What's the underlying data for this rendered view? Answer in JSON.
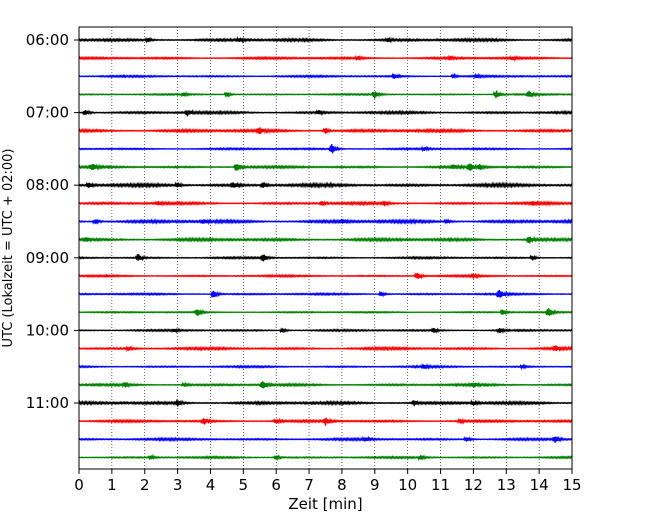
{
  "chart_data": {
    "type": "line",
    "title": "",
    "xlabel": "Zeit  [min]",
    "ylabel": "UTC (Lokalzeit = UTC + 02:00)",
    "xlim": [
      0,
      15
    ],
    "x_ticks": [
      0,
      1,
      2,
      3,
      4,
      5,
      6,
      7,
      8,
      9,
      10,
      11,
      12,
      13,
      14,
      15
    ],
    "y_tick_labels": [
      "06:00",
      "07:00",
      "08:00",
      "09:00",
      "10:00",
      "11:00"
    ],
    "y_tick_rows": [
      0,
      4,
      8,
      12,
      16,
      20
    ],
    "grid": "vertical-dotted",
    "row_interval_min": 15,
    "series_colors": [
      "#000000",
      "#ff0000",
      "#0000ff",
      "#008000"
    ],
    "rows": [
      {
        "start": "06:00",
        "color": "#000000",
        "amplitude": 0.65,
        "events": [
          {
            "t": 2.1,
            "a": 1.2
          },
          {
            "t": 4.9,
            "a": 1.0
          },
          {
            "t": 9.4,
            "a": 0.9
          }
        ]
      },
      {
        "start": "06:15",
        "color": "#ff0000",
        "amplitude": 0.55,
        "events": [
          {
            "t": 8.5,
            "a": 1.0
          },
          {
            "t": 11.3,
            "a": 1.0
          },
          {
            "t": 13.2,
            "a": 0.9
          }
        ]
      },
      {
        "start": "06:30",
        "color": "#0000ff",
        "amplitude": 0.45,
        "events": [
          {
            "t": 9.6,
            "a": 1.6
          },
          {
            "t": 11.4,
            "a": 1.0
          },
          {
            "t": 12.1,
            "a": 0.8
          }
        ]
      },
      {
        "start": "06:45",
        "color": "#008000",
        "amplitude": 0.35,
        "events": [
          {
            "t": 3.2,
            "a": 1.0
          },
          {
            "t": 4.5,
            "a": 1.5
          },
          {
            "t": 9.0,
            "a": 2.5
          },
          {
            "t": 12.7,
            "a": 2.6
          },
          {
            "t": 13.7,
            "a": 2.0
          }
        ]
      },
      {
        "start": "07:00",
        "color": "#000000",
        "amplitude": 0.6,
        "events": [
          {
            "t": 0.2,
            "a": 1.8
          },
          {
            "t": 3.3,
            "a": 2.0
          },
          {
            "t": 7.3,
            "a": 1.2
          }
        ]
      },
      {
        "start": "07:15",
        "color": "#ff0000",
        "amplitude": 0.7,
        "events": [
          {
            "t": 5.5,
            "a": 1.8
          },
          {
            "t": 7.5,
            "a": 2.0
          }
        ]
      },
      {
        "start": "07:30",
        "color": "#0000ff",
        "amplitude": 0.45,
        "events": [
          {
            "t": 7.7,
            "a": 3.0
          },
          {
            "t": 10.5,
            "a": 1.0
          }
        ]
      },
      {
        "start": "07:45",
        "color": "#008000",
        "amplitude": 0.55,
        "events": [
          {
            "t": 0.4,
            "a": 2.0
          },
          {
            "t": 4.8,
            "a": 3.0
          },
          {
            "t": 11.4,
            "a": 1.2
          },
          {
            "t": 11.9,
            "a": 2.6
          },
          {
            "t": 12.2,
            "a": 1.8
          }
        ]
      },
      {
        "start": "08:00",
        "color": "#000000",
        "amplitude": 0.75,
        "events": [
          {
            "t": 0.3,
            "a": 1.6
          },
          {
            "t": 3.0,
            "a": 1.6
          },
          {
            "t": 4.7,
            "a": 1.8
          },
          {
            "t": 5.6,
            "a": 2.0
          }
        ]
      },
      {
        "start": "08:15",
        "color": "#ff0000",
        "amplitude": 0.6,
        "events": [
          {
            "t": 2.4,
            "a": 1.2
          },
          {
            "t": 7.4,
            "a": 1.3
          },
          {
            "t": 9.3,
            "a": 1.4
          },
          {
            "t": 13.8,
            "a": 1.2
          }
        ]
      },
      {
        "start": "08:30",
        "color": "#0000ff",
        "amplitude": 0.75,
        "events": [
          {
            "t": 0.5,
            "a": 1.5
          },
          {
            "t": 3.8,
            "a": 1.4
          },
          {
            "t": 8.0,
            "a": 1.3
          },
          {
            "t": 11.2,
            "a": 1.2
          }
        ]
      },
      {
        "start": "08:45",
        "color": "#008000",
        "amplitude": 0.7,
        "events": [
          {
            "t": 0.2,
            "a": 1.4
          },
          {
            "t": 13.7,
            "a": 2.2
          }
        ]
      },
      {
        "start": "09:00",
        "color": "#000000",
        "amplitude": 0.45,
        "events": [
          {
            "t": 1.8,
            "a": 2.6
          },
          {
            "t": 5.6,
            "a": 2.4
          },
          {
            "t": 13.8,
            "a": 1.6
          }
        ]
      },
      {
        "start": "09:15",
        "color": "#ff0000",
        "amplitude": 0.45,
        "events": [
          {
            "t": 10.3,
            "a": 2.6
          },
          {
            "t": 12.0,
            "a": 1.2
          }
        ]
      },
      {
        "start": "09:30",
        "color": "#0000ff",
        "amplitude": 0.45,
        "events": [
          {
            "t": 4.1,
            "a": 2.8
          },
          {
            "t": 9.2,
            "a": 1.4
          },
          {
            "t": 12.8,
            "a": 3.2
          }
        ]
      },
      {
        "start": "09:45",
        "color": "#008000",
        "amplitude": 0.35,
        "events": [
          {
            "t": 3.6,
            "a": 2.8
          },
          {
            "t": 12.9,
            "a": 2.0
          },
          {
            "t": 14.3,
            "a": 3.2
          }
        ]
      },
      {
        "start": "10:00",
        "color": "#000000",
        "amplitude": 0.45,
        "events": [
          {
            "t": 2.9,
            "a": 1.0
          },
          {
            "t": 6.2,
            "a": 1.4
          },
          {
            "t": 10.8,
            "a": 1.6
          },
          {
            "t": 12.8,
            "a": 1.6
          }
        ]
      },
      {
        "start": "10:15",
        "color": "#ff0000",
        "amplitude": 0.6,
        "events": [
          {
            "t": 1.5,
            "a": 1.2
          },
          {
            "t": 14.5,
            "a": 1.6
          }
        ]
      },
      {
        "start": "10:30",
        "color": "#0000ff",
        "amplitude": 0.45,
        "events": [
          {
            "t": 10.5,
            "a": 1.2
          },
          {
            "t": 13.5,
            "a": 1.2
          }
        ]
      },
      {
        "start": "10:45",
        "color": "#008000",
        "amplitude": 0.55,
        "events": [
          {
            "t": 1.4,
            "a": 1.4
          },
          {
            "t": 3.2,
            "a": 1.2
          },
          {
            "t": 5.6,
            "a": 2.6
          },
          {
            "t": 12.0,
            "a": 1.4
          }
        ]
      },
      {
        "start": "11:00",
        "color": "#000000",
        "amplitude": 0.7,
        "events": [
          {
            "t": 3.0,
            "a": 2.0
          },
          {
            "t": 10.2,
            "a": 1.6
          },
          {
            "t": 12.0,
            "a": 1.2
          }
        ]
      },
      {
        "start": "11:15",
        "color": "#ff0000",
        "amplitude": 0.55,
        "events": [
          {
            "t": 3.8,
            "a": 2.0
          },
          {
            "t": 6.0,
            "a": 1.6
          },
          {
            "t": 7.5,
            "a": 2.6
          },
          {
            "t": 11.6,
            "a": 1.4
          }
        ]
      },
      {
        "start": "11:30",
        "color": "#0000ff",
        "amplitude": 0.55,
        "events": [
          {
            "t": 8.7,
            "a": 1.2
          },
          {
            "t": 11.8,
            "a": 1.6
          },
          {
            "t": 14.5,
            "a": 2.0
          }
        ]
      },
      {
        "start": "11:45",
        "color": "#008000",
        "amplitude": 0.45,
        "events": [
          {
            "t": 2.2,
            "a": 1.2
          },
          {
            "t": 6.0,
            "a": 1.4
          },
          {
            "t": 10.4,
            "a": 1.2
          }
        ]
      }
    ]
  }
}
